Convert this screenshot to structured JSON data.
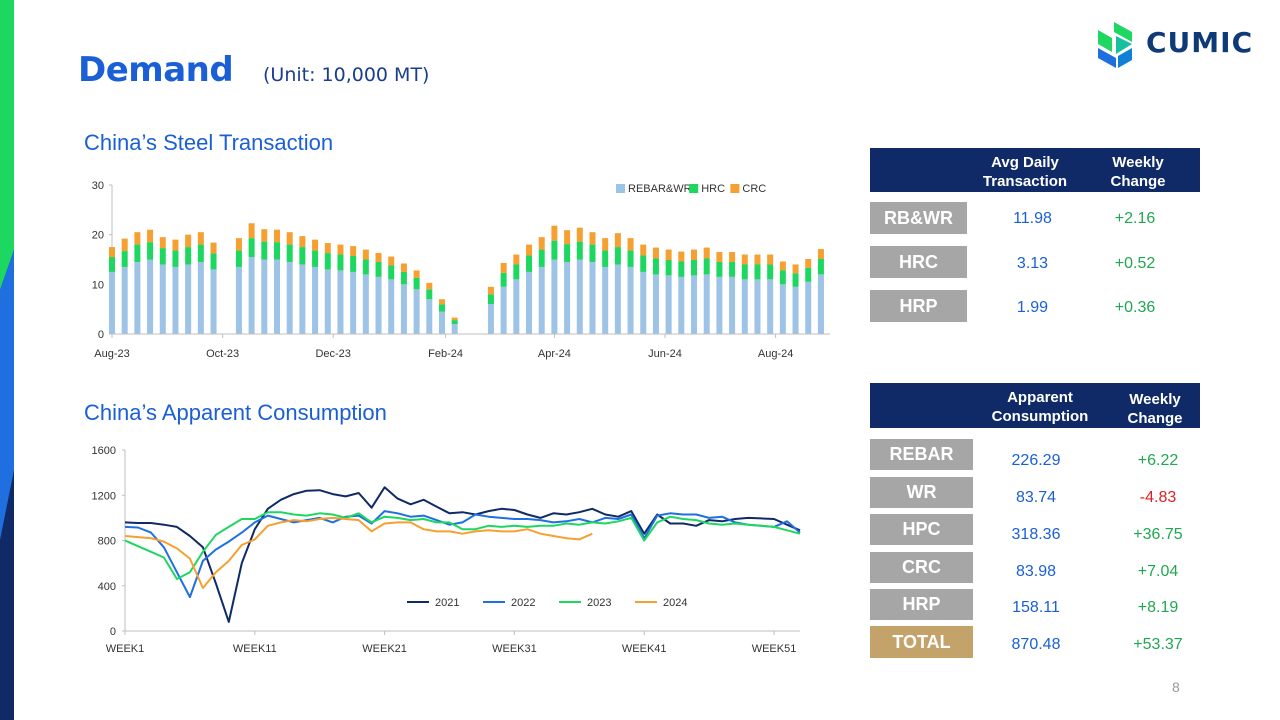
{
  "slide": {
    "title": "Demand",
    "unit": "(Unit: 10,000 MT)",
    "page_number": "8",
    "logo_text": "CUMIC",
    "accent_blue": "#1a5fd6",
    "navy": "#0f2a66"
  },
  "transaction_table": {
    "col1": "Avg Daily Transaction",
    "col2": "Weekly Change",
    "rows": [
      {
        "label": "RB&WR",
        "value": "11.98",
        "change": "+2.16"
      },
      {
        "label": "HRC",
        "value": "3.13",
        "change": "+0.52"
      },
      {
        "label": "HRP",
        "value": "1.99",
        "change": "+0.36"
      }
    ]
  },
  "consumption_table": {
    "col1": "Apparent Consumption",
    "col2": "Weekly Change",
    "rows": [
      {
        "label": "REBAR",
        "value": "226.29",
        "change": "+6.22"
      },
      {
        "label": "WR",
        "value": "83.74",
        "change": "-4.83"
      },
      {
        "label": "HPC",
        "value": "318.36",
        "change": "+36.75"
      },
      {
        "label": "CRC",
        "value": "83.98",
        "change": "+7.04"
      },
      {
        "label": "HRP",
        "value": "158.11",
        "change": "+8.19"
      },
      {
        "label": "TOTAL",
        "value": "870.48",
        "change": "+53.37"
      }
    ]
  },
  "chart_data": [
    {
      "type": "bar",
      "stacked": true,
      "title": "China’s Steel Transaction",
      "ylim": [
        0,
        30
      ],
      "y_ticks": [
        0,
        10,
        20,
        30
      ],
      "x_tick_labels": [
        "Aug-23",
        "Oct-23",
        "Dec-23",
        "Feb-24",
        "Apr-24",
        "Jun-24",
        "Aug-24"
      ],
      "x_range": [
        "2023-08-01",
        "2024-08-31"
      ],
      "x_tick_dates": [
        "2023-08-01",
        "2023-10-01",
        "2023-12-01",
        "2024-02-01",
        "2024-04-01",
        "2024-06-01",
        "2024-08-01"
      ],
      "legend": "top-right",
      "series": [
        {
          "name": "REBAR&WR",
          "color": "#9dc3e6"
        },
        {
          "name": "HRC",
          "color": "#1ed760"
        },
        {
          "name": "CRC",
          "color": "#f5a030"
        }
      ],
      "bars": [
        {
          "x": "2023-08-01",
          "values": [
            12.5,
            3.0,
            2.0
          ]
        },
        {
          "x": "2023-08-08",
          "values": [
            13.5,
            3.2,
            2.5
          ]
        },
        {
          "x": "2023-08-15",
          "values": [
            14.5,
            3.5,
            2.5
          ]
        },
        {
          "x": "2023-08-22",
          "values": [
            15.0,
            3.5,
            2.5
          ]
        },
        {
          "x": "2023-08-29",
          "values": [
            14.0,
            3.3,
            2.2
          ]
        },
        {
          "x": "2023-09-05",
          "values": [
            13.5,
            3.3,
            2.2
          ]
        },
        {
          "x": "2023-09-12",
          "values": [
            14.0,
            3.5,
            2.5
          ]
        },
        {
          "x": "2023-09-19",
          "values": [
            14.5,
            3.5,
            2.5
          ]
        },
        {
          "x": "2023-09-26",
          "values": [
            13.0,
            3.2,
            2.2
          ]
        },
        {
          "x": "2023-10-10",
          "values": [
            13.5,
            3.3,
            2.5
          ]
        },
        {
          "x": "2023-10-17",
          "values": [
            15.5,
            3.8,
            3.0
          ]
        },
        {
          "x": "2023-10-24",
          "values": [
            15.0,
            3.6,
            2.5
          ]
        },
        {
          "x": "2023-10-31",
          "values": [
            15.0,
            3.5,
            2.5
          ]
        },
        {
          "x": "2023-11-07",
          "values": [
            14.5,
            3.5,
            2.5
          ]
        },
        {
          "x": "2023-11-14",
          "values": [
            14.0,
            3.5,
            2.2
          ]
        },
        {
          "x": "2023-11-21",
          "values": [
            13.5,
            3.3,
            2.2
          ]
        },
        {
          "x": "2023-11-28",
          "values": [
            13.0,
            3.3,
            2.0
          ]
        },
        {
          "x": "2023-12-05",
          "values": [
            12.8,
            3.2,
            2.0
          ]
        },
        {
          "x": "2023-12-12",
          "values": [
            12.5,
            3.2,
            2.0
          ]
        },
        {
          "x": "2023-12-19",
          "values": [
            12.0,
            3.0,
            2.0
          ]
        },
        {
          "x": "2023-12-26",
          "values": [
            11.5,
            3.0,
            1.8
          ]
        },
        {
          "x": "2024-01-02",
          "values": [
            11.0,
            2.8,
            1.8
          ]
        },
        {
          "x": "2024-01-09",
          "values": [
            10.0,
            2.5,
            1.7
          ]
        },
        {
          "x": "2024-01-16",
          "values": [
            9.0,
            2.3,
            1.5
          ]
        },
        {
          "x": "2024-01-23",
          "values": [
            7.0,
            2.0,
            1.3
          ]
        },
        {
          "x": "2024-01-30",
          "values": [
            4.5,
            1.5,
            1.0
          ]
        },
        {
          "x": "2024-02-06",
          "values": [
            2.0,
            0.8,
            0.5
          ]
        },
        {
          "x": "2024-02-26",
          "values": [
            6.0,
            2.0,
            1.5
          ]
        },
        {
          "x": "2024-03-04",
          "values": [
            9.5,
            2.8,
            2.0
          ]
        },
        {
          "x": "2024-03-11",
          "values": [
            11.0,
            3.0,
            2.0
          ]
        },
        {
          "x": "2024-03-18",
          "values": [
            12.5,
            3.3,
            2.2
          ]
        },
        {
          "x": "2024-03-25",
          "values": [
            13.5,
            3.5,
            2.5
          ]
        },
        {
          "x": "2024-04-01",
          "values": [
            15.0,
            3.8,
            3.0
          ]
        },
        {
          "x": "2024-04-08",
          "values": [
            14.5,
            3.6,
            2.8
          ]
        },
        {
          "x": "2024-04-15",
          "values": [
            15.0,
            3.6,
            2.8
          ]
        },
        {
          "x": "2024-04-22",
          "values": [
            14.5,
            3.5,
            2.5
          ]
        },
        {
          "x": "2024-04-29",
          "values": [
            13.5,
            3.3,
            2.5
          ]
        },
        {
          "x": "2024-05-06",
          "values": [
            14.0,
            3.5,
            2.8
          ]
        },
        {
          "x": "2024-05-13",
          "values": [
            13.5,
            3.3,
            2.5
          ]
        },
        {
          "x": "2024-05-20",
          "values": [
            12.5,
            3.3,
            2.2
          ]
        },
        {
          "x": "2024-05-27",
          "values": [
            12.0,
            3.2,
            2.2
          ]
        },
        {
          "x": "2024-06-03",
          "values": [
            11.8,
            3.1,
            2.1
          ]
        },
        {
          "x": "2024-06-10",
          "values": [
            11.5,
            3.1,
            2.0
          ]
        },
        {
          "x": "2024-06-17",
          "values": [
            11.8,
            3.1,
            2.1
          ]
        },
        {
          "x": "2024-06-24",
          "values": [
            12.0,
            3.2,
            2.2
          ]
        },
        {
          "x": "2024-07-01",
          "values": [
            11.5,
            3.0,
            2.0
          ]
        },
        {
          "x": "2024-07-08",
          "values": [
            11.5,
            3.0,
            2.0
          ]
        },
        {
          "x": "2024-07-15",
          "values": [
            11.0,
            3.0,
            2.0
          ]
        },
        {
          "x": "2024-07-22",
          "values": [
            11.0,
            3.0,
            2.0
          ]
        },
        {
          "x": "2024-07-29",
          "values": [
            11.0,
            3.0,
            2.0
          ]
        },
        {
          "x": "2024-08-05",
          "values": [
            10.0,
            2.8,
            1.8
          ]
        },
        {
          "x": "2024-08-12",
          "values": [
            9.5,
            2.7,
            1.8
          ]
        },
        {
          "x": "2024-08-19",
          "values": [
            10.5,
            2.8,
            1.8
          ]
        },
        {
          "x": "2024-08-26",
          "values": [
            12.0,
            3.1,
            2.0
          ]
        }
      ]
    },
    {
      "type": "line",
      "title": "China’s Apparent Consumption",
      "ylim": [
        0,
        1600
      ],
      "y_ticks": [
        0,
        400,
        800,
        1200,
        1600
      ],
      "x_tick_labels": [
        "WEEK1",
        "WEEK11",
        "WEEK21",
        "WEEK31",
        "WEEK41",
        "WEEK51"
      ],
      "x_ticks": [
        1,
        11,
        21,
        31,
        41,
        51
      ],
      "xlim": [
        1,
        53
      ],
      "legend": "bottom-center",
      "series": [
        {
          "name": "2021",
          "color": "#0f2a66",
          "start_week": 1,
          "values": [
            960,
            955,
            955,
            940,
            920,
            840,
            740,
            420,
            80,
            600,
            900,
            1080,
            1160,
            1210,
            1240,
            1245,
            1210,
            1190,
            1220,
            1090,
            1270,
            1170,
            1120,
            1160,
            1100,
            1040,
            1050,
            1030,
            1060,
            1080,
            1070,
            1030,
            1000,
            1040,
            1030,
            1050,
            1080,
            1030,
            1010,
            1060,
            860,
            1030,
            950,
            950,
            930,
            980,
            970,
            990,
            1000,
            995,
            990,
            940,
            890
          ]
        },
        {
          "name": "2022",
          "color": "#1f6fe0",
          "start_week": 1,
          "values": [
            920,
            915,
            870,
            740,
            520,
            300,
            620,
            720,
            790,
            870,
            960,
            1020,
            990,
            960,
            980,
            1000,
            960,
            1010,
            1020,
            950,
            1060,
            1040,
            1010,
            1020,
            980,
            940,
            960,
            1030,
            1010,
            1000,
            990,
            990,
            980,
            960,
            970,
            990,
            960,
            1000,
            990,
            1030,
            820,
            1020,
            1040,
            1030,
            1030,
            1000,
            1010,
            960,
            940,
            930,
            920,
            970,
            870
          ]
        },
        {
          "name": "2023",
          "color": "#1ed760",
          "start_week": 1,
          "values": [
            800,
            750,
            700,
            650,
            460,
            520,
            700,
            850,
            920,
            990,
            990,
            1050,
            1050,
            1030,
            1020,
            1040,
            1030,
            1000,
            1040,
            960,
            1010,
            1000,
            980,
            990,
            960,
            960,
            900,
            900,
            930,
            920,
            930,
            920,
            930,
            930,
            950,
            940,
            960,
            950,
            970,
            1000,
            800,
            960,
            1010,
            990,
            980,
            950,
            940,
            950,
            940,
            930,
            920,
            890,
            860
          ]
        },
        {
          "name": "2024",
          "color": "#f5a030",
          "start_week": 1,
          "values": [
            840,
            830,
            820,
            790,
            730,
            640,
            380,
            520,
            620,
            760,
            810,
            930,
            960,
            980,
            970,
            990,
            1000,
            990,
            980,
            880,
            950,
            960,
            960,
            900,
            880,
            880,
            860,
            880,
            890,
            880,
            880,
            900,
            860,
            840,
            820,
            810,
            860
          ]
        }
      ]
    }
  ]
}
